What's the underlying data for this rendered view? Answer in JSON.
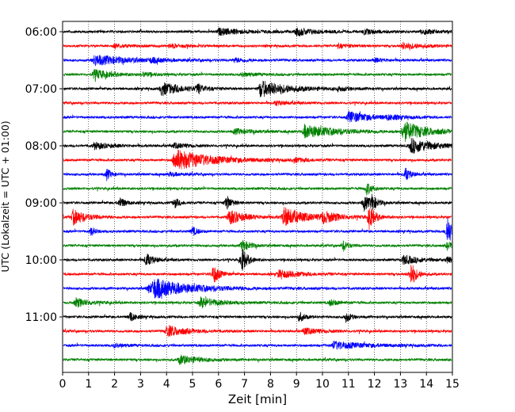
{
  "chart_data": {
    "type": "line",
    "title": "",
    "xlabel": "Zeit  [min]",
    "ylabel": "UTC (Lokalzeit = UTC + 01:00)",
    "xlim": [
      0,
      15
    ],
    "x_ticks": [
      0,
      1,
      2,
      3,
      4,
      5,
      6,
      7,
      8,
      9,
      10,
      11,
      12,
      13,
      14,
      15
    ],
    "x_tick_labels": [
      "0",
      "1",
      "2",
      "3",
      "4",
      "5",
      "6",
      "7",
      "8",
      "9",
      "10",
      "11",
      "12",
      "13",
      "14",
      "15"
    ],
    "y_tick_labels": [
      "06:00",
      "07:00",
      "08:00",
      "09:00",
      "10:00",
      "11:00"
    ],
    "y_tick_rows": [
      0,
      4,
      8,
      12,
      16,
      20
    ],
    "row_duration_min": 15,
    "grid": "vertical dotted at each minute",
    "trace_colors": [
      "#000000",
      "#ff0000",
      "#0000ff",
      "#008000"
    ],
    "traces": [
      {
        "start": "06:00",
        "events": [
          [
            6.0,
            0.5,
            1.0
          ],
          [
            9.0,
            0.6,
            0.7
          ],
          [
            11.6,
            0.4,
            0.5
          ],
          [
            13.8,
            0.4,
            0.6
          ]
        ]
      },
      {
        "start": "06:15",
        "events": [
          [
            2.0,
            0.3,
            0.5
          ],
          [
            4.1,
            0.3,
            0.5
          ],
          [
            10.6,
            0.3,
            0.5
          ],
          [
            13.1,
            0.5,
            0.7
          ]
        ]
      },
      {
        "start": "06:30",
        "events": [
          [
            1.2,
            0.8,
            1.3
          ],
          [
            3.4,
            0.3,
            0.4
          ],
          [
            6.6,
            0.3,
            0.5
          ],
          [
            12.0,
            0.3,
            0.4
          ]
        ]
      },
      {
        "start": "06:45",
        "events": [
          [
            1.2,
            0.8,
            0.6
          ],
          [
            3.1,
            0.3,
            0.4
          ],
          [
            6.9,
            0.3,
            0.5
          ]
        ]
      },
      {
        "start": "07:00",
        "events": [
          [
            3.8,
            1.0,
            0.8
          ],
          [
            5.2,
            0.7,
            0.2
          ],
          [
            7.6,
            1.3,
            1.0
          ],
          [
            10.6,
            0.3,
            0.4
          ]
        ]
      },
      {
        "start": "07:15",
        "events": [
          [
            8.2,
            0.3,
            0.5
          ]
        ]
      },
      {
        "start": "07:30",
        "events": [
          [
            11.0,
            0.9,
            0.8
          ],
          [
            12.5,
            0.3,
            0.5
          ]
        ]
      },
      {
        "start": "07:45",
        "events": [
          [
            6.6,
            0.4,
            0.7
          ],
          [
            9.3,
            1.0,
            1.2
          ],
          [
            13.1,
            1.6,
            0.8
          ]
        ]
      },
      {
        "start": "08:00",
        "events": [
          [
            1.2,
            0.5,
            0.6
          ],
          [
            4.3,
            0.4,
            0.5
          ],
          [
            13.4,
            1.2,
            0.8
          ]
        ]
      },
      {
        "start": "08:15",
        "events": [
          [
            4.3,
            1.7,
            1.3
          ],
          [
            8.9,
            0.3,
            0.5
          ]
        ]
      },
      {
        "start": "08:30",
        "events": [
          [
            1.7,
            0.9,
            0.15
          ],
          [
            4.1,
            0.3,
            0.4
          ],
          [
            13.2,
            1.0,
            0.2
          ]
        ]
      },
      {
        "start": "08:45",
        "events": [
          [
            11.7,
            1.0,
            0.2
          ]
        ]
      },
      {
        "start": "09:00",
        "events": [
          [
            2.2,
            0.9,
            0.2
          ],
          [
            4.3,
            0.8,
            0.2
          ],
          [
            6.3,
            1.2,
            0.2
          ],
          [
            11.6,
            1.3,
            0.2
          ],
          [
            11.9,
            1.1,
            0.2
          ]
        ]
      },
      {
        "start": "09:15",
        "events": [
          [
            0.4,
            1.2,
            0.5
          ],
          [
            6.4,
            1.1,
            0.6
          ],
          [
            8.5,
            1.5,
            0.8
          ],
          [
            10.0,
            0.8,
            0.6
          ],
          [
            11.8,
            1.9,
            0.2
          ]
        ]
      },
      {
        "start": "09:30",
        "events": [
          [
            1.1,
            0.7,
            0.15
          ],
          [
            5.0,
            0.7,
            0.2
          ],
          [
            14.8,
            2.8,
            0.15
          ]
        ]
      },
      {
        "start": "09:45",
        "events": [
          [
            6.9,
            0.9,
            0.3
          ],
          [
            10.8,
            0.8,
            0.2
          ],
          [
            14.8,
            0.6,
            0.2
          ]
        ]
      },
      {
        "start": "10:00",
        "events": [
          [
            3.2,
            1.0,
            0.3
          ],
          [
            6.9,
            2.0,
            0.2
          ],
          [
            13.1,
            0.7,
            0.6
          ],
          [
            14.8,
            0.4,
            0.3
          ]
        ]
      },
      {
        "start": "10:15",
        "events": [
          [
            5.8,
            1.7,
            0.2
          ],
          [
            8.3,
            0.6,
            0.8
          ],
          [
            13.4,
            2.0,
            0.2
          ]
        ]
      },
      {
        "start": "10:30",
        "events": [
          [
            3.5,
            1.3,
            1.5
          ],
          [
            3.3,
            0.7,
            0.4
          ]
        ]
      },
      {
        "start": "10:45",
        "events": [
          [
            0.5,
            0.7,
            0.5
          ],
          [
            5.3,
            0.8,
            0.7
          ],
          [
            10.3,
            0.5,
            0.3
          ]
        ]
      },
      {
        "start": "11:00",
        "events": [
          [
            2.6,
            0.8,
            0.2
          ],
          [
            9.1,
            0.8,
            0.2
          ],
          [
            10.9,
            0.8,
            0.2
          ]
        ]
      },
      {
        "start": "11:15",
        "events": [
          [
            4.0,
            0.9,
            0.7
          ],
          [
            9.3,
            0.5,
            0.6
          ]
        ]
      },
      {
        "start": "11:30",
        "events": [
          [
            10.4,
            0.6,
            1.2
          ],
          [
            2.0,
            0.3,
            0.4
          ]
        ]
      },
      {
        "start": "11:45",
        "events": [
          [
            4.5,
            0.7,
            0.7
          ]
        ]
      }
    ]
  }
}
